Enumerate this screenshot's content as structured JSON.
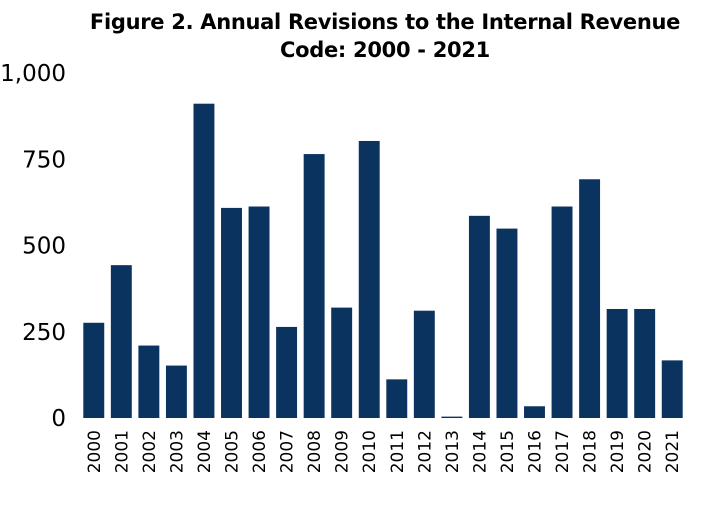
{
  "chart_data": {
    "type": "bar",
    "title_lines": [
      "Figure 2. Annual Revisions to the Internal Revenue",
      "Code: 2000 - 2021"
    ],
    "categories": [
      "2000",
      "2001",
      "2002",
      "2003",
      "2004",
      "2005",
      "2006",
      "2007",
      "2008",
      "2009",
      "2010",
      "2011",
      "2012",
      "2013",
      "2014",
      "2015",
      "2016",
      "2017",
      "2018",
      "2019",
      "2020",
      "2021"
    ],
    "values": [
      276,
      443,
      210,
      152,
      911,
      609,
      613,
      264,
      765,
      320,
      803,
      112,
      311,
      4,
      586,
      549,
      34,
      613,
      692,
      316,
      316,
      167
    ],
    "ylim": [
      0,
      1000
    ],
    "yticks": [
      0,
      250,
      500,
      750,
      1000
    ],
    "ytick_labels": [
      "0",
      "250",
      "500",
      "750",
      "1,000"
    ],
    "xlabel": "",
    "ylabel": "",
    "grid": false,
    "bar_color": "#0b3360"
  }
}
